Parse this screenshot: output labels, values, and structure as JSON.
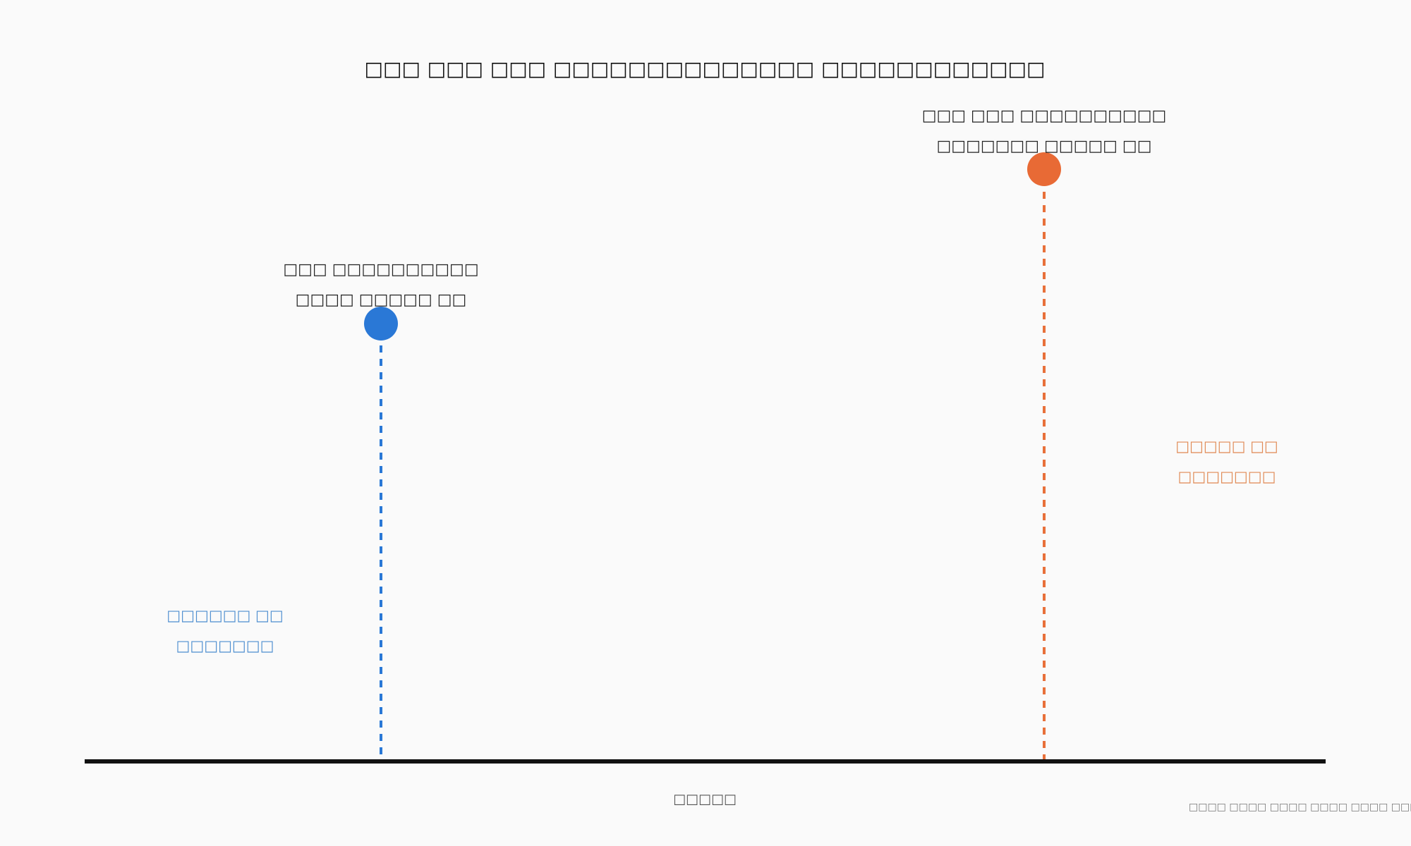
{
  "title": "□□□ □□□ □□□ □□□□□□□□□□□□□□ □□□□□□□□□□□□",
  "points": [
    {
      "label": [
        "□□□ □□□□□□□□□□",
        "□□□□ □□□□□ □□"
      ]
    },
    {
      "label": [
        "□□□ □□□ □□□□□□□□□□",
        "□□□□□□□ □□□□□ □□"
      ]
    }
  ],
  "side_labels": [
    [
      "□□□□□□ □□",
      "□□□□□□□"
    ],
    [
      "□□□□□ □□",
      "□□□□□□□"
    ]
  ],
  "x_axis_label": "□□□□□",
  "footer": "□□□□ □□□□ □□□□ □□□□ □□□□ □□□□ □□□□ □□□□"
}
